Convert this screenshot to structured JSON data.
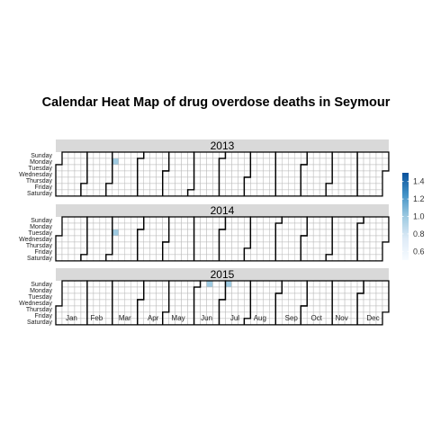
{
  "chart_data": {
    "type": "heatmap",
    "title": "Calendar Heat Map of drug overdose deaths in Seymour",
    "layout": "calendar",
    "years": [
      2013,
      2014,
      2015
    ],
    "weekdays": [
      "Sunday",
      "Monday",
      "Tuesday",
      "Wednesday",
      "Thursday",
      "Friday",
      "Saturday"
    ],
    "months": [
      "Jan",
      "Feb",
      "Mar",
      "Apr",
      "May",
      "Jun",
      "Jul",
      "Aug",
      "Sep",
      "Oct",
      "Nov",
      "Dec"
    ],
    "cells": [
      {
        "date": "2013-03-04",
        "value": 1.0
      },
      {
        "date": "2014-03-04",
        "value": 1.0
      },
      {
        "date": "2015-06-14",
        "value": 1.0
      },
      {
        "date": "2015-07-05",
        "value": 1.0
      }
    ],
    "legend": {
      "position": "right",
      "range": [
        0.5,
        1.5
      ],
      "ticks": [
        0.6,
        0.8,
        1.0,
        1.2,
        1.4
      ],
      "tick_labels": [
        "0.6",
        "0.8",
        "1.0",
        "1.2",
        "1.4"
      ],
      "colors": [
        "#f7fbff",
        "#deebf7",
        "#9ecae1",
        "#4292c6",
        "#08519c"
      ]
    },
    "grid": true
  }
}
